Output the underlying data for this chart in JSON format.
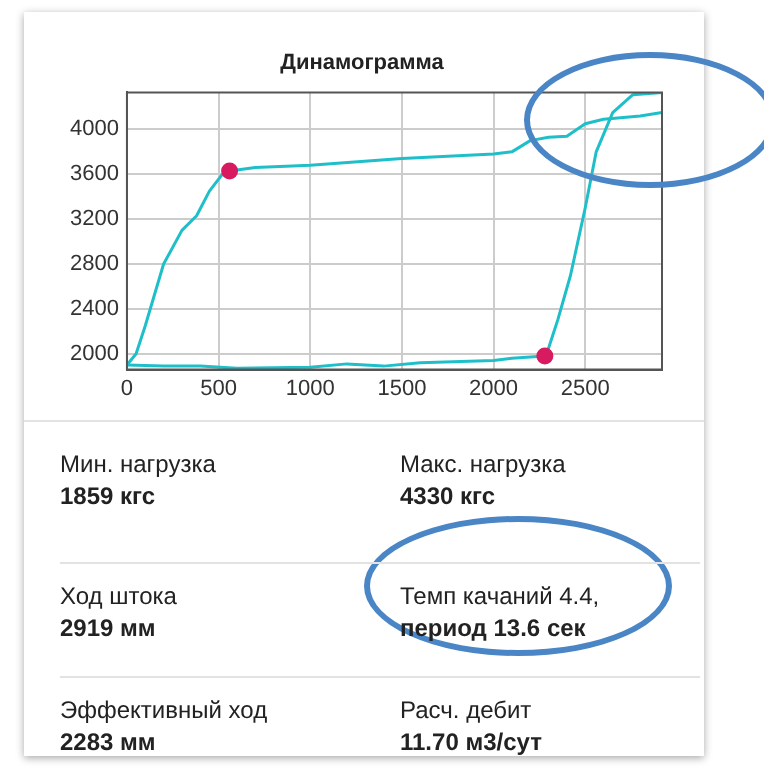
{
  "chart_data": [
    {
      "type": "line",
      "title": "Динамограмма",
      "xlim": [
        0,
        2919
      ],
      "ylim": [
        1859,
        4330
      ],
      "xticks": [
        0,
        500,
        1000,
        1500,
        2000,
        2500
      ],
      "yticks": [
        2000,
        2400,
        2800,
        3200,
        3600,
        4000
      ],
      "grid": true,
      "legend": false,
      "marker": "none",
      "line_style": "solid",
      "series": [
        {
          "color": "#1fbfca",
          "x": [
            0,
            50,
            100,
            200,
            300,
            380,
            450,
            520,
            560,
            700,
            1000,
            1500,
            2000,
            2100,
            2200,
            2300,
            2400,
            2500,
            2600,
            2800,
            2919
          ],
          "values": [
            1900,
            2000,
            2250,
            2800,
            3100,
            3230,
            3450,
            3600,
            3630,
            3660,
            3680,
            3740,
            3780,
            3800,
            3900,
            3930,
            3940,
            4050,
            4090,
            4120,
            4150
          ]
        },
        {
          "color": "#1fbfca",
          "x": [
            0,
            200,
            400,
            600,
            1000,
            1200,
            1400,
            1600,
            2000,
            2100,
            2280,
            2300,
            2350,
            2420,
            2500,
            2560,
            2650,
            2760,
            2850,
            2919
          ],
          "values": [
            1900,
            1890,
            1890,
            1870,
            1880,
            1910,
            1890,
            1920,
            1940,
            1960,
            1980,
            2050,
            2300,
            2700,
            3300,
            3800,
            4150,
            4310,
            4320,
            4330
          ]
        },
        {
          "type": "scatter",
          "color": "#d81b60",
          "marker": "circle",
          "x": [
            560,
            2280
          ],
          "values": [
            3630,
            1980
          ]
        }
      ]
    },
    {
      "type": "other",
      "annotations": [
        "Мин. нагрузка",
        "1859 кгс",
        "Макс. нагрузка",
        "4330 кгс",
        "Ход штока",
        "2919 мм",
        "Темп качаний 4.4,",
        "период 13.6 сек",
        "Эффективный ход",
        "2283 мм",
        "Расч. дебит",
        "11.70 м3/сут"
      ]
    }
  ]
}
